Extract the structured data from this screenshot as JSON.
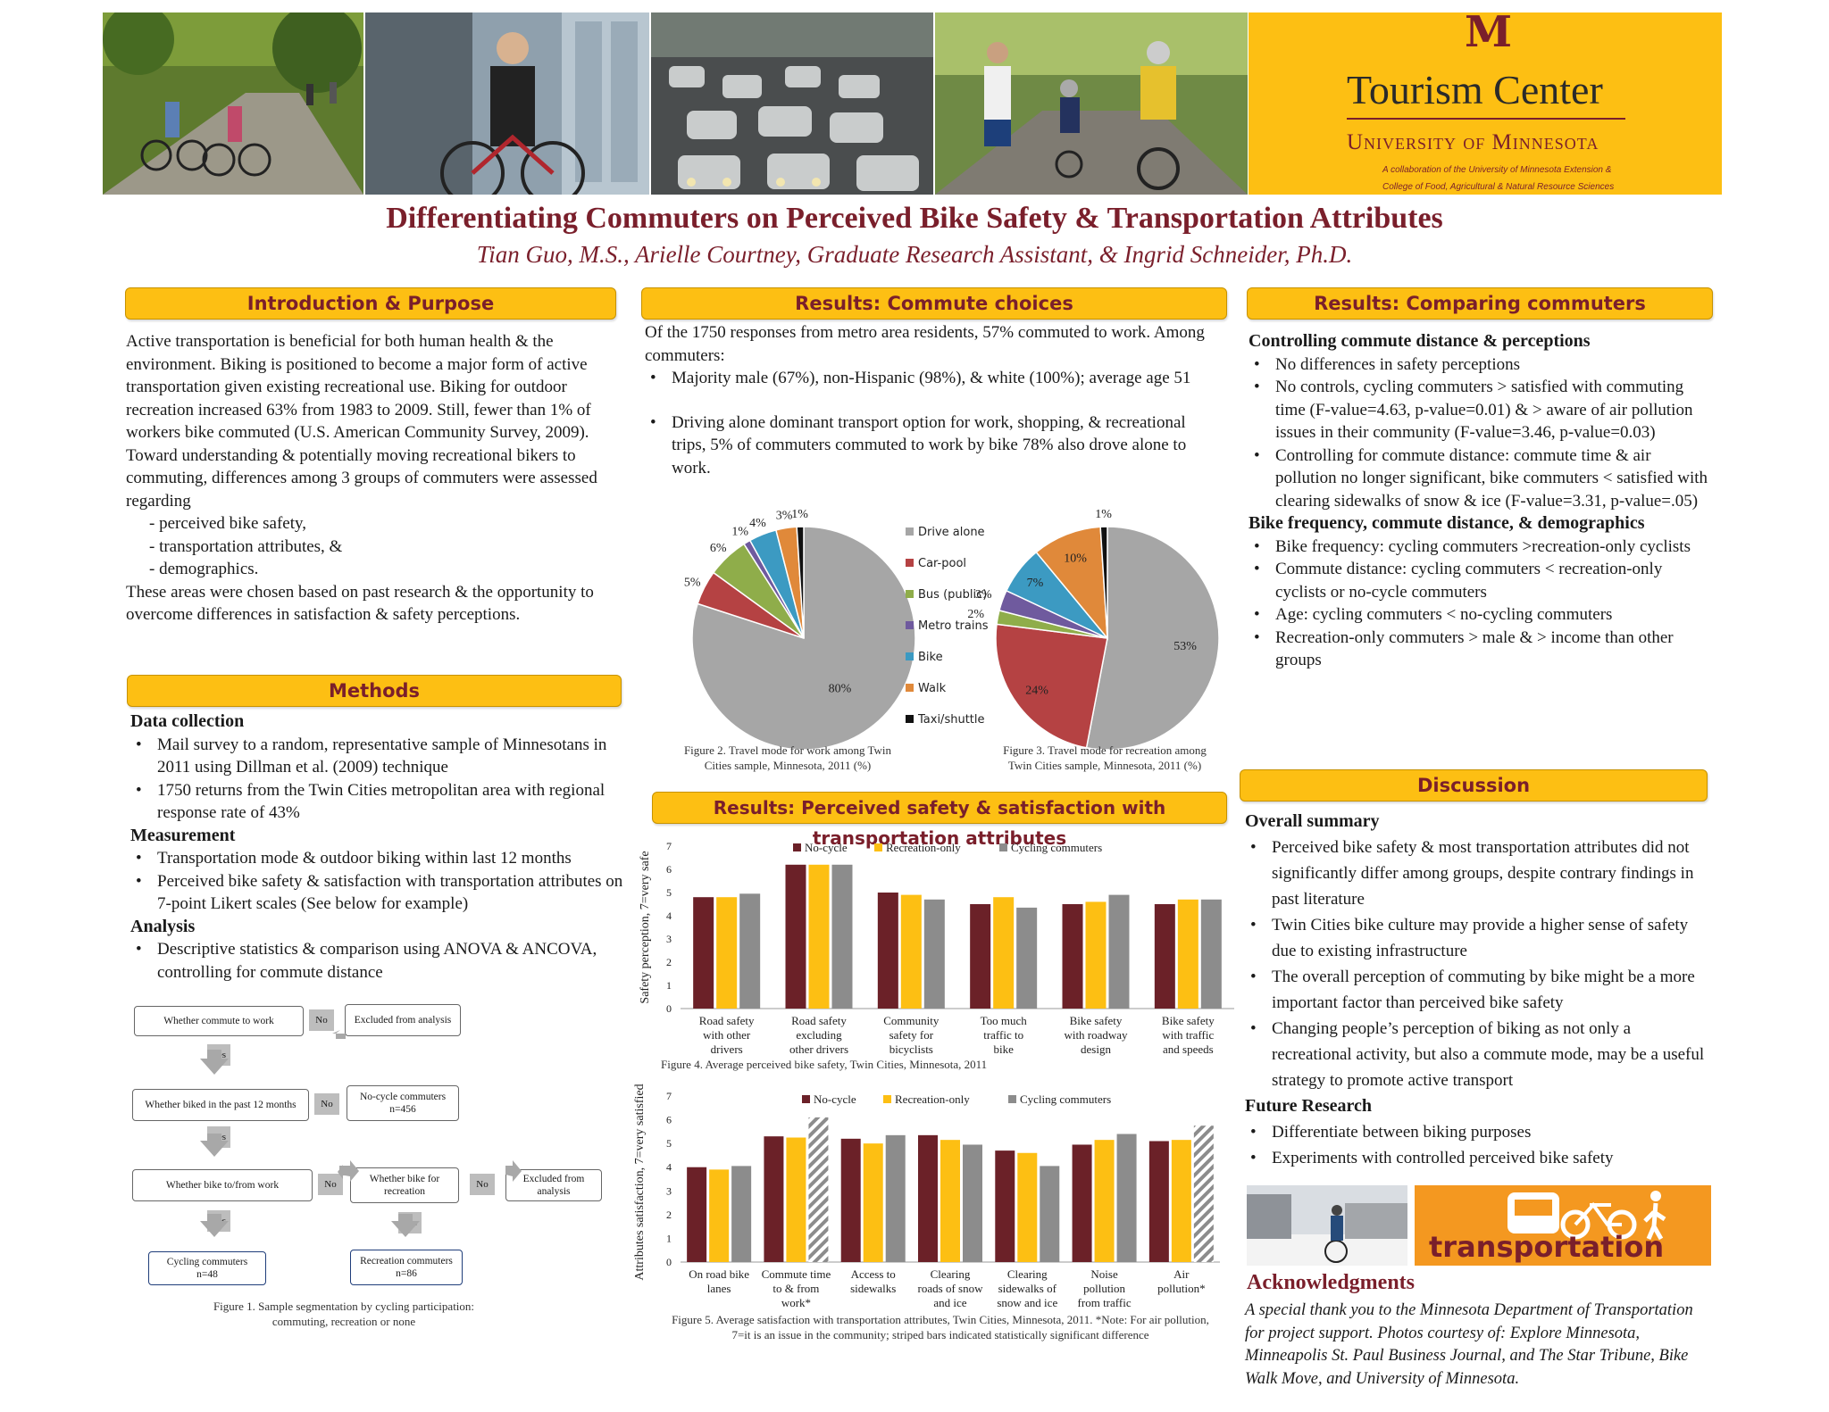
{
  "header": {
    "photos": [
      "cyclists-on-trail-photo",
      "businessman-cyclist-photo",
      "traffic-jam-photo",
      "family-cycling-photo"
    ],
    "logo_letter": "M",
    "center_name": "Tourism Center",
    "university": "University of Minnesota",
    "collab_line1": "A collaboration of the University of Minnesota Extension &",
    "collab_line2": "College of Food, Agricultural & Natural Resource Sciences",
    "colors": {
      "gold": "#fdbf13",
      "maroon": "#7a1f2b"
    }
  },
  "title": "Differentiating Commuters on Perceived Bike Safety & Transportation Attributes",
  "authors": "Tian Guo, M.S., Arielle Courtney, Graduate Research Assistant, & Ingrid Schneider, Ph.D.",
  "intro": {
    "heading": "Introduction & Purpose",
    "p1": "Active transportation is beneficial for both human health & the environment. Biking is positioned to become a major form of active transportation given existing recreational use. Biking for outdoor recreation increased 63% from 1983 to 2009. Still, fewer than 1% of workers bike commuted (U.S. American Community Survey, 2009).",
    "p2": "Toward understanding & potentially moving recreational bikers to commuting, differences among 3 groups of commuters were assessed regarding",
    "items": [
      "- perceived bike safety,",
      "- transportation attributes, &",
      "- demographics."
    ],
    "p3": "These areas were chosen based on past research & the opportunity to overcome differences in satisfaction & safety perceptions."
  },
  "methods": {
    "heading": "Methods",
    "data_collection": "Data collection",
    "dc_items": [
      "Mail survey to a random, representative sample of Minnesotans in 2011 using Dillman et al. (2009) technique",
      "1750 returns from the Twin Cities metropolitan area with regional response rate of 43%"
    ],
    "measurement": "Measurement",
    "m_items": [
      "Transportation mode & outdoor biking within last 12 months",
      "Perceived bike safety & satisfaction with transportation attributes on 7-point Likert scales (See below for example)"
    ],
    "analysis": "Analysis",
    "a_items": [
      "Descriptive statistics & comparison using ANOVA & ANCOVA, controlling for commute distance"
    ]
  },
  "flow": {
    "q1": "Whether commute to work",
    "q2": "Whether biked in the past 12 months",
    "q3": "Whether bike to/from work",
    "q4": "Whether bike for recreation",
    "excluded1": "Excluded from analysis",
    "excluded2": "Excluded from analysis",
    "nocycle": "No-cycle commuters",
    "nocycle_n": "n=456",
    "cycling": "Cycling commuters",
    "cycling_n": "n=48",
    "recreation": "Recreation commuters",
    "recreation_n": "n=86",
    "yes": "Yes",
    "no": "No",
    "caption_l1": "Figure 1. Sample segmentation by cycling participation:",
    "caption_l2": "commuting, recreation or none"
  },
  "commute": {
    "heading": "Results: Commute choices",
    "p1": "Of the 1750 responses from metro area residents, 57% commuted to work. Among commuters:",
    "items": [
      "Majority male (67%), non-Hispanic (98%), & white (100%); average age 51",
      "Driving alone dominant transport option for work, shopping, & recreational trips, 5% of commuters commuted to work by bike 78% also drove alone to work."
    ]
  },
  "chart_data": [
    {
      "type": "pie",
      "caption": "Figure 2. Travel mode for work among Twin Cities sample, Minnesota, 2011 (%)",
      "labels": [
        "Drive alone",
        "Car-pool",
        "Bus (public)",
        "Metro trains",
        "Bike",
        "Walk",
        "Taxi/shuttle"
      ],
      "values": [
        80,
        5,
        6,
        1,
        4,
        3,
        1
      ],
      "value_labels": [
        "80%",
        "5%",
        "6%",
        "1%",
        "4%",
        "3%",
        "1%"
      ],
      "colors": [
        "#a6a6a6",
        "#b54243",
        "#8fad4a",
        "#6f5a9e",
        "#3c9ac2",
        "#e0893a",
        "#111111"
      ]
    },
    {
      "type": "pie",
      "caption": "Figure 3. Travel mode for recreation among Twin Cities sample, Minnesota, 2011 (%)",
      "labels": [
        "Drive alone",
        "Car-pool",
        "Bus (public)",
        "Metro trains",
        "Bike",
        "Walk",
        "Taxi/shuttle"
      ],
      "values": [
        53,
        24,
        2,
        3,
        7,
        10,
        1
      ],
      "value_labels": [
        "53%",
        "24%",
        "2%",
        "3%",
        "7%",
        "10%",
        "1%"
      ],
      "colors": [
        "#a6a6a6",
        "#b54243",
        "#8fad4a",
        "#6f5a9e",
        "#3c9ac2",
        "#e0893a",
        "#111111"
      ]
    },
    {
      "type": "bar",
      "caption": "Figure 4. Average perceived bike safety, Twin Cities, Minnesota, 2011",
      "ylabel": "Safety perception, 7=very safe",
      "ylim": [
        0,
        7
      ],
      "yticks": [
        "0",
        "1",
        "2",
        "3",
        "4",
        "5",
        "6",
        "7"
      ],
      "categories": [
        "Road safety with other drivers",
        "Road safety excluding other drivers",
        "Community safety for bicyclists",
        "Too much traffic to bike",
        "Bike safety with roadway design",
        "Bike safety with traffic and speeds"
      ],
      "series": [
        {
          "name": "No-cycle",
          "color": "#6b2128",
          "values": [
            4.8,
            6.2,
            5.0,
            4.5,
            4.5,
            4.5
          ]
        },
        {
          "name": "Recreation-only",
          "color": "#fdbf13",
          "values": [
            4.8,
            6.2,
            4.9,
            4.8,
            4.6,
            4.7
          ]
        },
        {
          "name": "Cycling commuters",
          "color": "#8c8c8c",
          "values": [
            4.95,
            6.2,
            4.7,
            4.35,
            4.9,
            4.7
          ]
        }
      ]
    },
    {
      "type": "bar",
      "caption": "Figure 5. Average satisfaction with transportation attributes, Twin Cities, Minnesota, 2011. *Note: For air pollution, 7=it is an issue in the community; striped bars indicated statistically significant difference",
      "ylabel": "Attributes satisfaction, 7=very satisfied*",
      "ylim": [
        0,
        7
      ],
      "yticks": [
        "0",
        "1",
        "2",
        "3",
        "4",
        "5",
        "6",
        "7"
      ],
      "categories": [
        "On road bike lanes",
        "Commute time to & from work*",
        "Access to sidewalks",
        "Clearing roads of snow and ice",
        "Clearing sidewalks of snow and ice",
        "Noise pollution from traffic",
        "Air pollution*"
      ],
      "series": [
        {
          "name": "No-cycle",
          "color": "#6b2128",
          "values": [
            4.0,
            5.3,
            5.2,
            5.35,
            4.7,
            4.95,
            5.1
          ]
        },
        {
          "name": "Recreation-only",
          "color": "#fdbf13",
          "values": [
            3.9,
            5.25,
            5.0,
            5.15,
            4.6,
            5.15,
            5.15
          ]
        },
        {
          "name": "Cycling commuters",
          "color": "#8c8c8c",
          "values": [
            4.05,
            6.1,
            5.35,
            4.95,
            4.05,
            5.4,
            5.75
          ]
        }
      ],
      "striped": [
        "Commute time to & from work*",
        "Air pollution*"
      ]
    }
  ],
  "safety_heading": "Results: Perceived safety & satisfaction with transportation attributes",
  "comparing": {
    "heading": "Results: Comparing commuters",
    "h1": "Controlling commute distance & perceptions",
    "items1": [
      "No differences in safety perceptions",
      "No controls, cycling commuters > satisfied with commuting time (F-value=4.63, p-value=0.01) & > aware of air pollution issues in their community (F-value=3.46, p-value=0.03)",
      "Controlling for commute distance: commute time & air pollution no longer significant, bike commuters < satisfied with  clearing sidewalks of snow & ice (F-value=3.31, p-value=.05)"
    ],
    "h2": "Bike frequency, commute distance, & demographics",
    "items2": [
      "Bike frequency: cycling commuters >recreation-only cyclists",
      "Commute distance: cycling commuters < recreation-only cyclists or no-cycle commuters",
      "Age: cycling commuters < no-cycling commuters",
      "Recreation-only commuters > male & > income than other groups"
    ]
  },
  "discussion": {
    "heading": "Discussion",
    "h1": "Overall summary",
    "items1": [
      "Perceived bike safety & most transportation attributes did not significantly differ among groups, despite contrary findings in past literature",
      "Twin Cities bike culture may provide a higher sense of safety due to existing infrastructure",
      "The overall perception of commuting by bike might be a more important factor than perceived bike safety",
      "Changing people’s perception of biking as not only a recreational activity, but also a commute mode, may be a useful strategy to promote active transport"
    ],
    "h2": "Future Research",
    "items2": [
      "Differentiate between biking purposes",
      "Experiments with controlled perceived bike safety"
    ],
    "transport_word": "transportation"
  },
  "ack": {
    "heading": "Acknowledgments",
    "text": "A special thank you to the Minnesota Department of Transportation for project support. Photos courtesy of: Explore Minnesota, Minneapolis St. Paul Business Journal, and The Star Tribune, Bike Walk Move, and University of Minnesota."
  }
}
